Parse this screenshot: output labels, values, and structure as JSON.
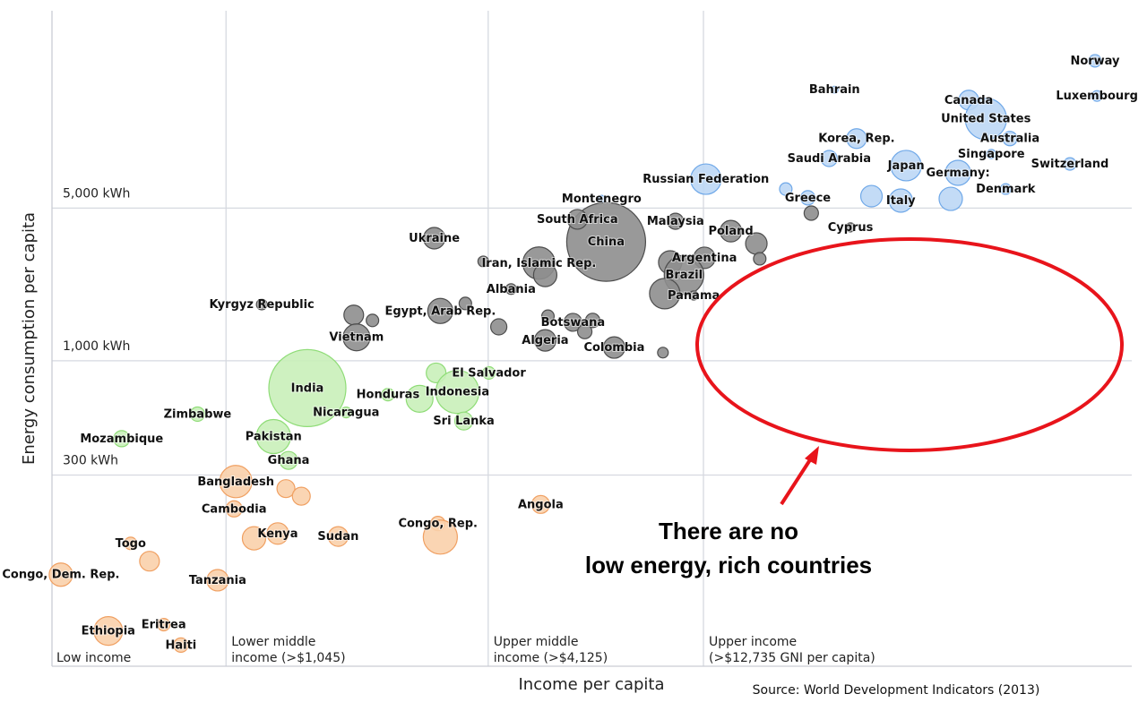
{
  "chart_data": {
    "type": "bubble",
    "x_label": "Income per capita",
    "y_label": "Energy consumption per capita",
    "source": "Source: World Development Indicators (2013)",
    "annotation": [
      "There are no",
      "low energy, rich countries"
    ],
    "xscale": "log",
    "yscale": "log",
    "grid": true,
    "xlim": [
      420,
      120000
    ],
    "ylim": [
      40,
      40000
    ],
    "x_start_label": "Low income",
    "xticks": [
      {
        "value": 1045,
        "label": "Lower middle\nincome (>$1,045)"
      },
      {
        "value": 4125,
        "label": "Upper middle\nincome (>$4,125)"
      },
      {
        "value": 12735,
        "label": "Upper income\n(>$12,735 GNI per capita)"
      }
    ],
    "yticks": [
      {
        "value": 300,
        "label": "300 kWh"
      },
      {
        "value": 1000,
        "label": "1,000 kWh"
      },
      {
        "value": 5000,
        "label": "5,000 kWh"
      }
    ],
    "series": [
      {
        "color": "#bcd7f5",
        "edge_color": "#6fa8e8",
        "labels": [
          "Norway",
          "Luxembourg",
          "Bahrain",
          "Canada",
          "United States",
          "Australia",
          "Korea, Rep.",
          "Saudi Arabia",
          "Japan",
          "Singapore",
          "Switzerland",
          "Germany:",
          "Russian Federation",
          "Greece",
          "Denmark",
          "Italy",
          null,
          null,
          null,
          "Montenegro"
        ],
        "x": [
          99000,
          100000,
          25300,
          51100,
          55900,
          63400,
          28400,
          24600,
          36800,
          57500,
          86800,
          48300,
          12900,
          22000,
          62000,
          35800,
          30700,
          46500,
          19600,
          7470
        ],
        "values": [
          23600,
          16300,
          17400,
          15600,
          12800,
          10400,
          10400,
          8430,
          7820,
          8840,
          7960,
          7250,
          6780,
          5570,
          6110,
          5410,
          5670,
          5510,
          6110,
          5510
        ],
        "sizes": [
          34,
          25,
          11,
          85,
          372,
          45,
          85,
          57,
          203,
          18,
          34,
          138,
          203,
          45,
          25,
          119,
          101,
          119,
          34,
          11
        ]
      },
      {
        "color": "#8e8e8e",
        "edge_color": "#4d4d4d",
        "labels": [
          "Cyprus",
          "China",
          "South Africa",
          "Malaysia",
          "Ukraine",
          "Poland",
          null,
          null,
          null,
          "Iran, Islamic Rep.",
          null,
          null,
          "Albania",
          "Argentina",
          null,
          "Brazil",
          null,
          "Panama",
          "Kyrgyz Republic",
          null,
          null,
          "Vietnam",
          "Egypt, Arab Rep.",
          null,
          null,
          null,
          "Botswana",
          null,
          null,
          "Algeria",
          "Colombia",
          null
        ],
        "x": [
          27500,
          7650,
          6580,
          11000,
          3110,
          14700,
          16800,
          17100,
          22400,
          5380,
          5560,
          4020,
          4650,
          12800,
          10700,
          11500,
          10400,
          12100,
          1260,
          2040,
          2250,
          2070,
          3210,
          3660,
          4360,
          5640,
          6430,
          7130,
          6840,
          5560,
          7980,
          10300
        ],
        "values": [
          4080,
          3500,
          4440,
          4350,
          3640,
          3920,
          3440,
          2930,
          4740,
          2800,
          2470,
          2850,
          2130,
          2960,
          2820,
          2470,
          2030,
          1990,
          1810,
          1620,
          1530,
          1280,
          1690,
          1830,
          1430,
          1600,
          1500,
          1530,
          1360,
          1240,
          1150,
          1090
        ],
        "sizes": [
          18,
          1360,
          85,
          57,
          101,
          101,
          101,
          34,
          45,
          228,
          119,
          25,
          25,
          101,
          119,
          340,
          203,
          18,
          25,
          85,
          34,
          158,
          138,
          34,
          57,
          34,
          70,
          45,
          45,
          101,
          101,
          25
        ]
      },
      {
        "color": "#c9f0b9",
        "edge_color": "#8fdc77",
        "labels": [
          "India",
          "El Salvador",
          null,
          "Indonesia",
          "Honduras",
          null,
          "Nicaragua",
          "Zimbabwe",
          "Sri Lanka",
          "Mozambique",
          "Pakistan",
          "Ghana"
        ],
        "x": [
          1600,
          4140,
          3140,
          3510,
          2440,
          2880,
          1960,
          900,
          3630,
          605,
          1340,
          1450
        ],
        "values": [
          750,
          880,
          880,
          720,
          700,
          670,
          580,
          570,
          530,
          440,
          450,
          350
        ],
        "sizes": [
          1300,
          34,
          85,
          405,
          34,
          158,
          25,
          45,
          70,
          57,
          254,
          70
        ]
      },
      {
        "color": "#f9d0ab",
        "edge_color": "#f0a062",
        "labels": [
          "Bangladesh",
          null,
          null,
          "Angola",
          "Cambodia",
          "Congo, Rep.",
          null,
          "Kenya",
          null,
          "Sudan",
          "Togo",
          null,
          "Congo, Dem. Rep.",
          "Tanzania",
          "Ethiopia",
          "Eritrea",
          "Haiti"
        ],
        "x": [
          1100,
          1430,
          1550,
          5430,
          1090,
          3170,
          3210,
          1370,
          1210,
          1880,
          634,
          700,
          440,
          1000,
          564,
          754,
          825
        ],
        "values": [
          280,
          260,
          240,
          220,
          210,
          180,
          156,
          162,
          154,
          157,
          146,
          121,
          105,
          99,
          58,
          62,
          50
        ],
        "sizes": [
          228,
          70,
          70,
          70,
          57,
          45,
          254,
          101,
          119,
          85,
          34,
          85,
          119,
          101,
          180,
          34,
          45
        ]
      }
    ]
  }
}
